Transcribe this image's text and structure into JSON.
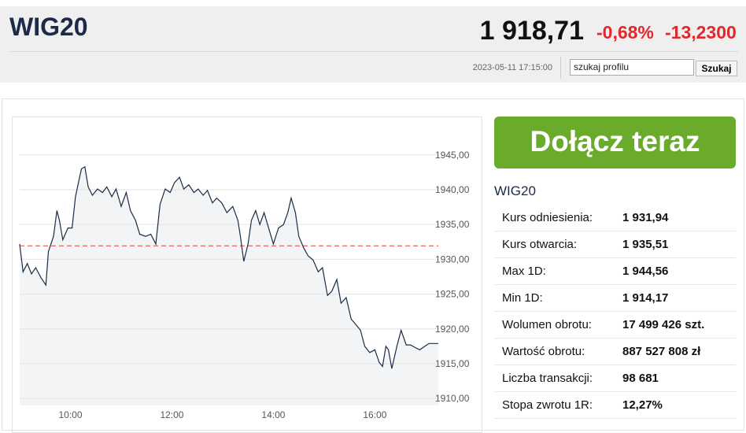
{
  "header": {
    "title": "WIG20",
    "price": "1 918,71",
    "change_pct": "-0,68%",
    "change_abs": "-13,2300",
    "timestamp": "2023-05-11 17:15:00",
    "search_value": "szukaj profilu",
    "search_button": "Szukaj"
  },
  "cta": "Dołącz teraz",
  "summary": {
    "title": "WIG20",
    "rows": [
      [
        "Kurs odniesienia:",
        "1 931,94"
      ],
      [
        "Kurs otwarcia:",
        "1 935,51"
      ],
      [
        "Max 1D:",
        "1 944,56"
      ],
      [
        "Min 1D:",
        "1 914,17"
      ],
      [
        "Wolumen obrotu:",
        "17 499 426 szt."
      ],
      [
        "Wartość obrotu:",
        "887 527 808 zł"
      ],
      [
        "Liczba transakcji:",
        "98 681"
      ],
      [
        "Stopa zwrotu 1R:",
        "12,27%"
      ]
    ]
  },
  "chart_data": {
    "type": "line",
    "x": [
      "09:00",
      "09:04",
      "09:09",
      "09:14",
      "09:19",
      "09:25",
      "09:31",
      "09:34",
      "09:40",
      "09:44",
      "09:47",
      "09:51",
      "09:57",
      "10:02",
      "10:06",
      "10:10",
      "10:13",
      "10:17",
      "10:21",
      "10:26",
      "10:32",
      "10:38",
      "10:43",
      "10:49",
      "10:54",
      "11:00",
      "11:06",
      "11:11",
      "11:17",
      "11:22",
      "11:29",
      "11:35",
      "11:41",
      "11:46",
      "11:52",
      "11:58",
      "12:03",
      "12:09",
      "12:14",
      "12:20",
      "12:26",
      "12:31",
      "12:37",
      "12:42",
      "12:48",
      "12:53",
      "12:59",
      "13:05",
      "13:12",
      "13:18",
      "13:21",
      "13:25",
      "13:30",
      "13:34",
      "13:39",
      "13:44",
      "13:49",
      "13:55",
      "14:00",
      "14:06",
      "14:12",
      "14:17",
      "14:21",
      "14:26",
      "14:30",
      "14:36",
      "14:41",
      "14:47",
      "14:53",
      "14:58",
      "15:04",
      "15:09",
      "15:15",
      "15:20",
      "15:26",
      "15:32",
      "15:37",
      "15:43",
      "15:48",
      "15:54",
      "16:00",
      "16:05",
      "16:09",
      "16:13",
      "16:16",
      "16:20",
      "16:26",
      "16:31",
      "16:37",
      "16:42",
      "16:48",
      "16:53",
      "16:59",
      "17:04",
      "17:15"
    ],
    "values": [
      1932.2,
      1928.2,
      1929.4,
      1927.9,
      1928.8,
      1927.4,
      1926.3,
      1931.1,
      1933.3,
      1937.0,
      1935.6,
      1932.8,
      1934.5,
      1934.5,
      1939.0,
      1941.3,
      1943.0,
      1943.3,
      1940.4,
      1939.2,
      1940.1,
      1939.6,
      1940.4,
      1939.0,
      1940.1,
      1937.6,
      1939.6,
      1937.0,
      1935.6,
      1933.6,
      1933.3,
      1933.6,
      1932.2,
      1937.9,
      1940.1,
      1939.6,
      1941.0,
      1941.8,
      1940.1,
      1940.7,
      1939.6,
      1940.1,
      1939.2,
      1939.9,
      1938.1,
      1938.8,
      1938.1,
      1936.7,
      1937.6,
      1935.6,
      1933.3,
      1929.7,
      1932.2,
      1935.6,
      1937.0,
      1935.0,
      1936.7,
      1934.2,
      1932.2,
      1934.5,
      1935.0,
      1936.7,
      1938.8,
      1936.7,
      1933.3,
      1931.6,
      1930.5,
      1929.9,
      1928.2,
      1928.8,
      1924.8,
      1925.4,
      1927.1,
      1923.7,
      1924.5,
      1921.4,
      1920.7,
      1919.8,
      1917.5,
      1916.6,
      1917.0,
      1915.2,
      1914.6,
      1917.5,
      1917.0,
      1914.3,
      1917.5,
      1919.8,
      1917.7,
      1917.7,
      1917.3,
      1917.0,
      1917.5,
      1917.9,
      1917.9
    ],
    "color": "#1c2b48",
    "area_color": "#f3f4f6",
    "xlim": [
      "09:00",
      "17:15"
    ],
    "xticks": [
      "10:00",
      "12:00",
      "14:00",
      "16:00"
    ],
    "ylim": [
      1909,
      1949.5
    ],
    "yticks": [
      {
        "value": 1910,
        "label": "1910,00"
      },
      {
        "value": 1915,
        "label": "1915,00"
      },
      {
        "value": 1920,
        "label": "1920,00"
      },
      {
        "value": 1925,
        "label": "1925,00"
      },
      {
        "value": 1930,
        "label": "1930,00"
      },
      {
        "value": 1935,
        "label": "1935,00"
      },
      {
        "value": 1940,
        "label": "1940,00"
      },
      {
        "value": 1945,
        "label": "1945,00"
      }
    ],
    "reference_line": 1931.94,
    "reference_color": "#e0403a",
    "grid": true
  }
}
